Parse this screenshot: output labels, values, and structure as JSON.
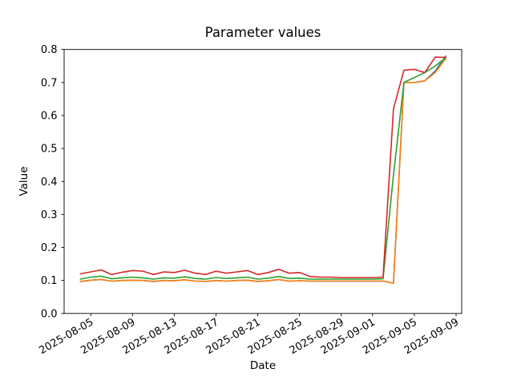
{
  "figure": {
    "title": "Parameter values",
    "xlabel": "Date",
    "ylabel": "Value"
  },
  "chart_data": {
    "type": "line",
    "title": "Parameter values",
    "xlabel": "Date",
    "ylabel": "Value",
    "grid": false,
    "legend": "none",
    "ylim": [
      0.0,
      0.8
    ],
    "y_ticks": [
      0.0,
      0.1,
      0.2,
      0.3,
      0.4,
      0.5,
      0.6,
      0.7,
      0.8
    ],
    "x_tick_labels": [
      "2025-08-05",
      "2025-08-09",
      "2025-08-13",
      "2025-08-17",
      "2025-08-21",
      "2025-08-25",
      "2025-08-29",
      "2025-09-01",
      "2025-09-05",
      "2025-09-09"
    ],
    "x": [
      "2025-08-04",
      "2025-08-05",
      "2025-08-06",
      "2025-08-07",
      "2025-08-08",
      "2025-08-09",
      "2025-08-10",
      "2025-08-11",
      "2025-08-12",
      "2025-08-13",
      "2025-08-14",
      "2025-08-15",
      "2025-08-16",
      "2025-08-17",
      "2025-08-18",
      "2025-08-19",
      "2025-08-20",
      "2025-08-21",
      "2025-08-22",
      "2025-08-23",
      "2025-08-24",
      "2025-08-25",
      "2025-08-26",
      "2025-08-27",
      "2025-08-28",
      "2025-08-29",
      "2025-08-30",
      "2025-08-31",
      "2025-09-01",
      "2025-09-02",
      "2025-09-03",
      "2025-09-04",
      "2025-09-05",
      "2025-09-06",
      "2025-09-07",
      "2025-09-08"
    ],
    "series": [
      {
        "name": "blue",
        "color": "#1f77b4",
        "values": [
          0.097,
          0.101,
          0.103,
          0.098,
          0.1,
          0.101,
          0.1,
          0.097,
          0.1,
          0.099,
          0.102,
          0.098,
          0.097,
          0.1,
          0.098,
          0.1,
          0.101,
          0.097,
          0.099,
          0.103,
          0.098,
          0.099,
          0.098,
          0.098,
          0.098,
          0.098,
          0.098,
          0.098,
          0.098,
          0.098,
          0.092,
          0.7,
          0.7,
          0.705,
          0.735,
          0.78
        ]
      },
      {
        "name": "orange",
        "color": "#ff7f0e",
        "values": [
          0.097,
          0.101,
          0.103,
          0.098,
          0.1,
          0.101,
          0.1,
          0.097,
          0.1,
          0.099,
          0.102,
          0.098,
          0.097,
          0.1,
          0.098,
          0.1,
          0.101,
          0.097,
          0.099,
          0.103,
          0.098,
          0.099,
          0.098,
          0.098,
          0.098,
          0.098,
          0.098,
          0.098,
          0.098,
          0.098,
          0.092,
          0.7,
          0.7,
          0.705,
          0.73,
          0.772
        ]
      },
      {
        "name": "green",
        "color": "#2ca02c",
        "values": [
          0.104,
          0.11,
          0.113,
          0.105,
          0.108,
          0.11,
          0.108,
          0.104,
          0.108,
          0.107,
          0.111,
          0.106,
          0.104,
          0.109,
          0.106,
          0.108,
          0.11,
          0.104,
          0.107,
          0.112,
          0.106,
          0.107,
          0.104,
          0.104,
          0.104,
          0.104,
          0.104,
          0.104,
          0.104,
          0.105,
          0.42,
          0.7,
          0.715,
          0.73,
          0.75,
          0.775
        ]
      },
      {
        "name": "red",
        "color": "#d62728",
        "values": [
          0.12,
          0.126,
          0.132,
          0.118,
          0.125,
          0.13,
          0.128,
          0.118,
          0.126,
          0.124,
          0.131,
          0.122,
          0.118,
          0.128,
          0.122,
          0.126,
          0.13,
          0.118,
          0.124,
          0.134,
          0.122,
          0.124,
          0.112,
          0.11,
          0.11,
          0.109,
          0.109,
          0.109,
          0.109,
          0.11,
          0.62,
          0.737,
          0.74,
          0.73,
          0.777,
          0.776
        ]
      }
    ]
  }
}
